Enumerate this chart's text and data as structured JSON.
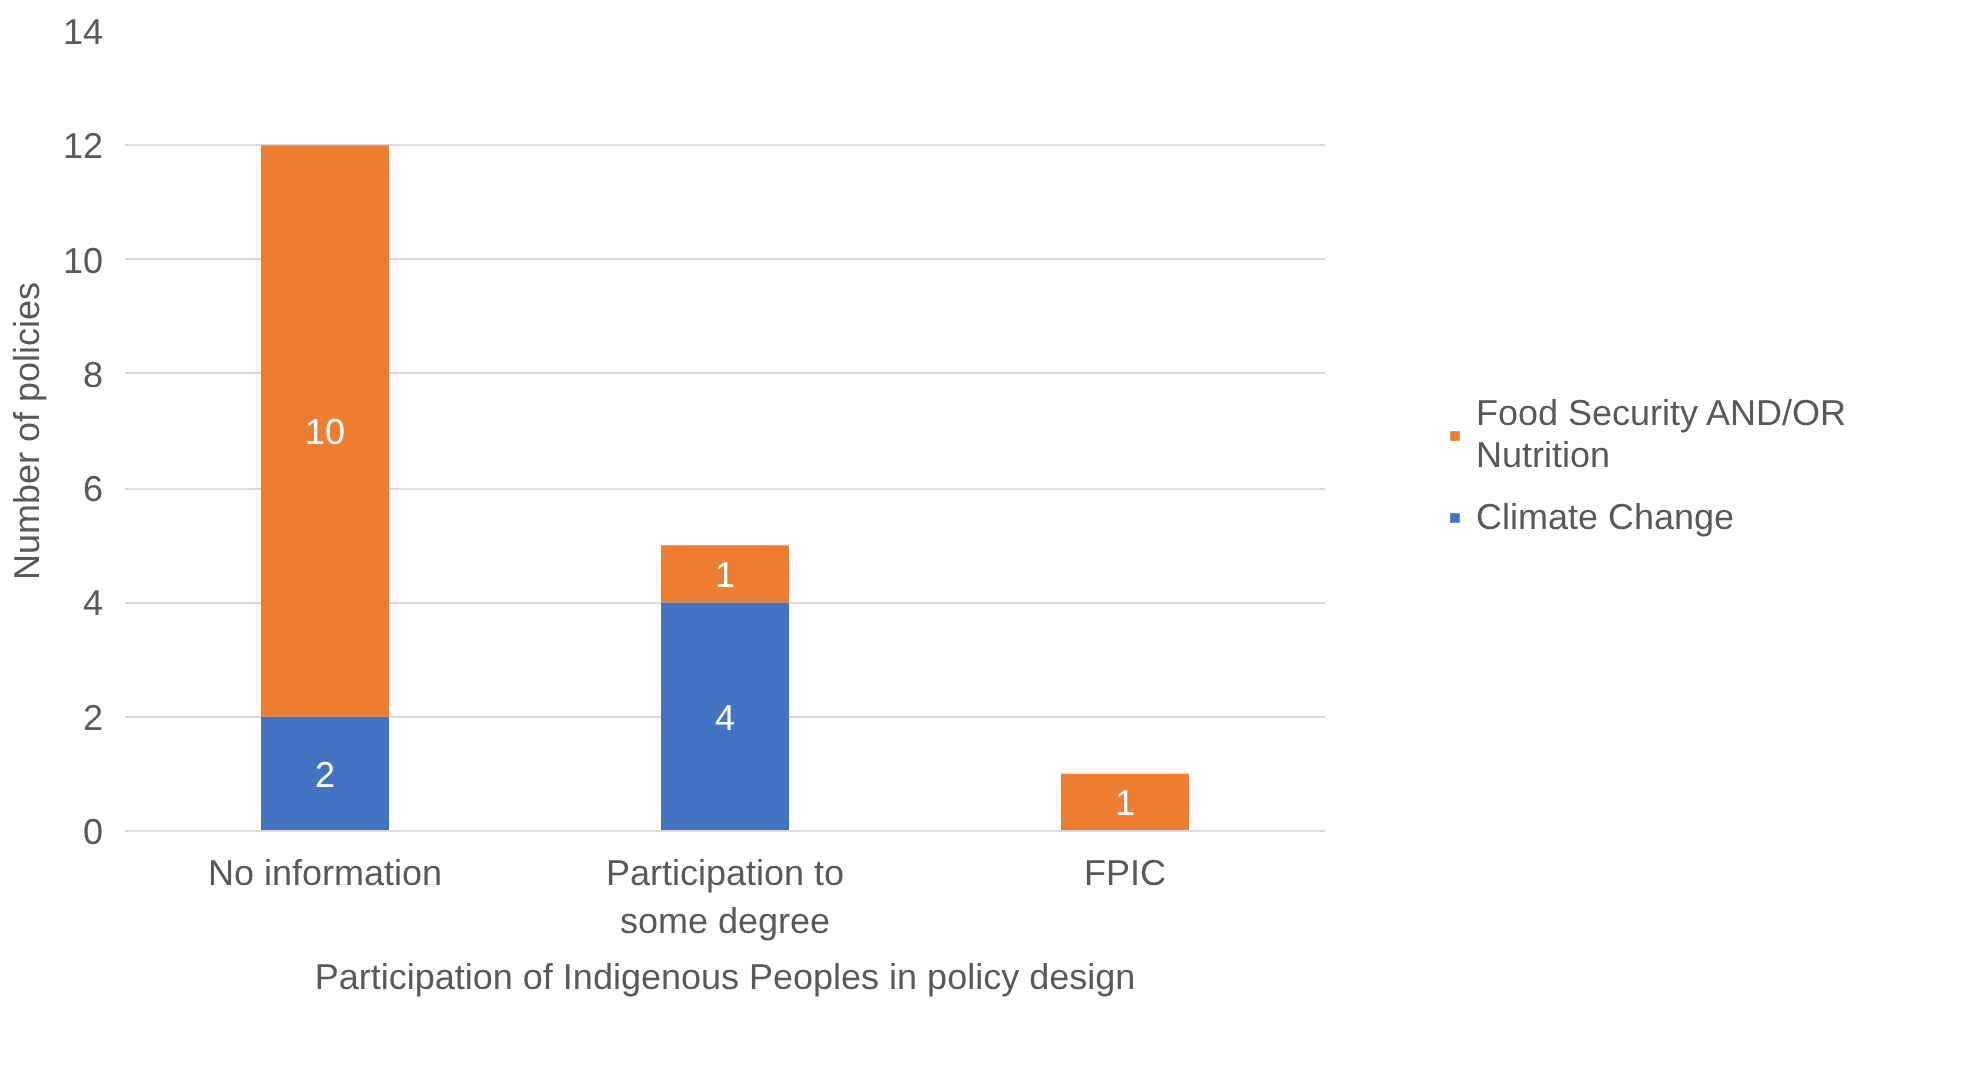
{
  "chart_data": {
    "type": "bar",
    "stacked": true,
    "xlabel": "Participation of Indigenous Peoples in policy design",
    "ylabel": "Number of policies",
    "categories": [
      "No information",
      "Participation to some degree",
      "FPIC"
    ],
    "series": [
      {
        "name": "Climate Change",
        "color": "#4472c4",
        "values": [
          2,
          4,
          null
        ]
      },
      {
        "name": "Food Security AND/OR Nutrition",
        "color": "#ed7d31",
        "values": [
          10,
          1,
          1
        ]
      }
    ],
    "ylim": [
      0,
      14
    ],
    "yticks": [
      0,
      2,
      4,
      6,
      8,
      10,
      12,
      14
    ],
    "grid": "y",
    "legend": "right",
    "data_labels": true
  }
}
